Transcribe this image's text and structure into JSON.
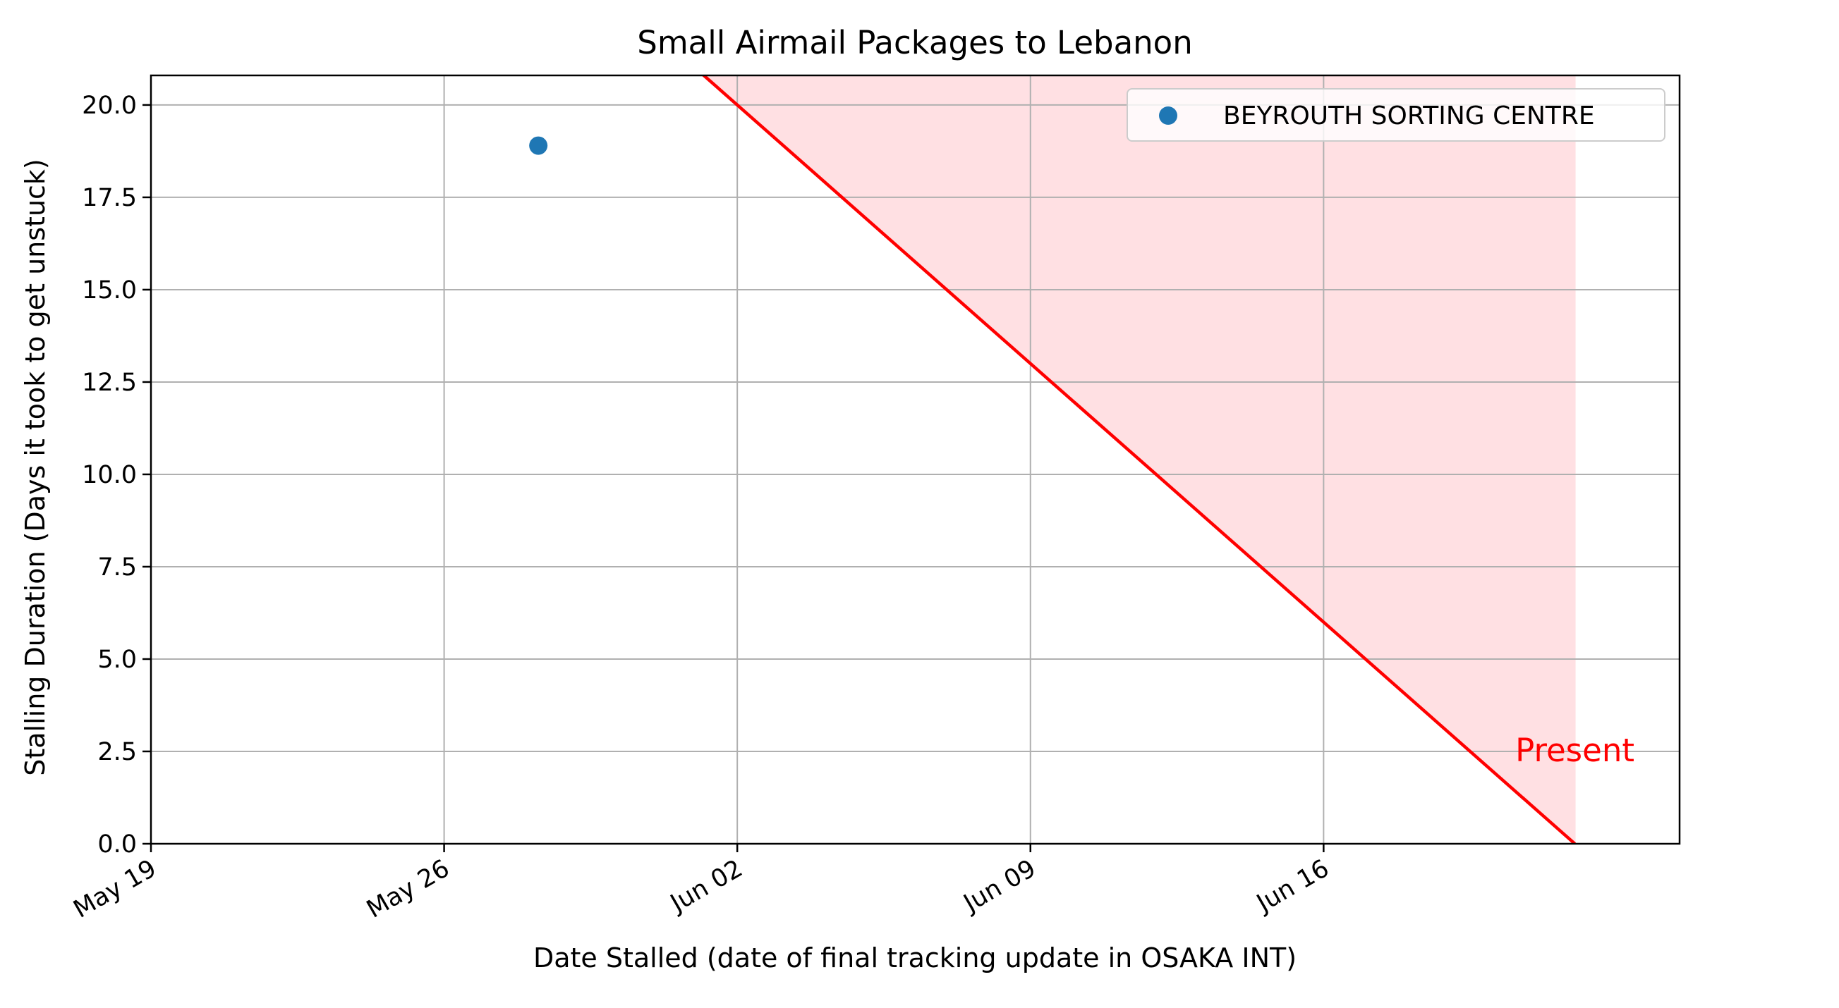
{
  "chart_data": {
    "type": "scatter",
    "title": "Small Airmail Packages to Lebanon",
    "xlabel": "Date Stalled (date of final tracking update in OSAKA INT)",
    "ylabel": "Stalling Duration (Days it took to get unstuck)",
    "xlim": [
      "2025-05-19",
      "2025-06-24T12:00"
    ],
    "ylim": [
      0,
      20.8
    ],
    "x_ticks": [
      "2025-05-19",
      "2025-05-26",
      "2025-06-02",
      "2025-06-09",
      "2025-06-16"
    ],
    "x_tick_labels": [
      "May 19",
      "May 26",
      "Jun 02",
      "Jun 09",
      "Jun 16"
    ],
    "y_ticks": [
      0.0,
      2.5,
      5.0,
      7.5,
      10.0,
      12.5,
      15.0,
      17.5,
      20.0
    ],
    "y_tick_labels": [
      "0.0",
      "2.5",
      "5.0",
      "7.5",
      "10.0",
      "12.5",
      "15.0",
      "17.5",
      "20.0"
    ],
    "grid": true,
    "legend_position": "top-right",
    "series": [
      {
        "name": "BEYROUTH SORTING CENTRE",
        "color": "#1f77b4",
        "points": [
          {
            "x": "2025-05-28T06:00",
            "y": 18.9
          }
        ]
      }
    ],
    "present_line": {
      "present_date": "2025-06-22",
      "color": "#ff0000",
      "fill_color": "#ffe0e3",
      "label": "Present",
      "label_position": {
        "x": "2025-06-22",
        "y": 2.5
      }
    }
  }
}
